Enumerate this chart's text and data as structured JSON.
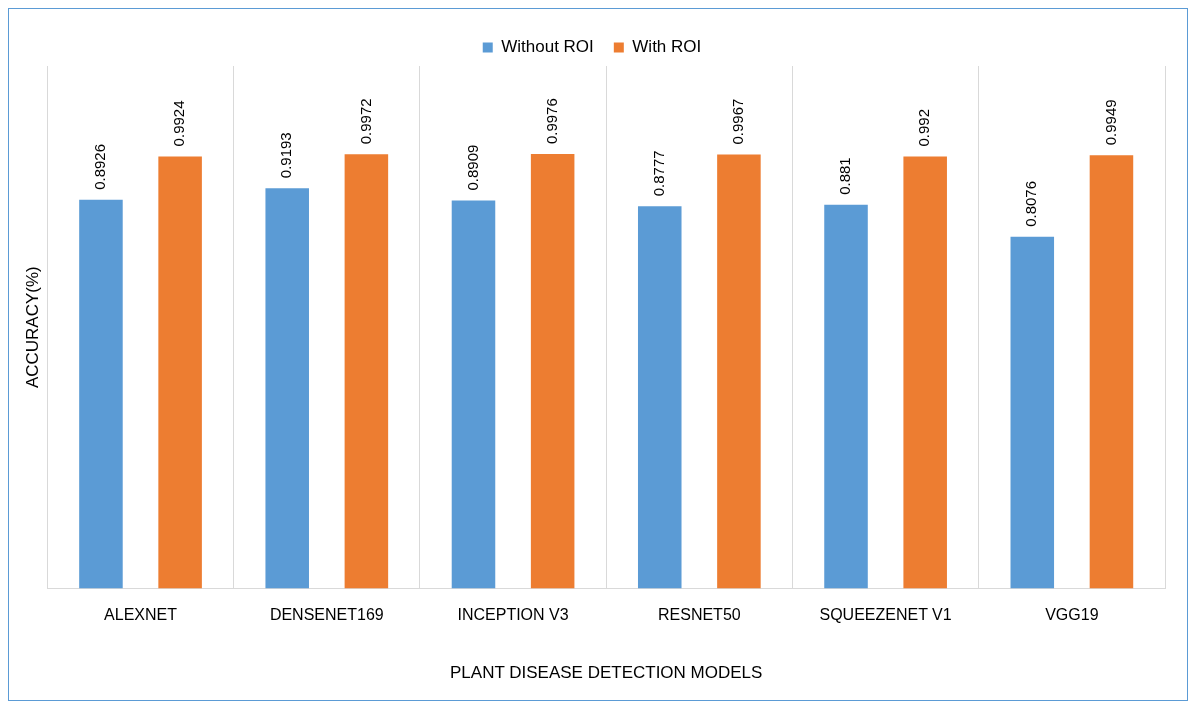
{
  "chart_data": {
    "type": "bar",
    "xlabel": "PLANT DISEASE DETECTION MODELS",
    "ylabel": "ACCURACY(%)",
    "categories": [
      "ALEXNET",
      "DENSENET169",
      "INCEPTION V3",
      "RESNET50",
      "SQUEEZENET V1",
      "VGG19"
    ],
    "series": [
      {
        "name": "Without ROI",
        "color": "#5b9bd5",
        "values": [
          0.8926,
          0.9193,
          0.8909,
          0.8777,
          0.881,
          0.8076
        ]
      },
      {
        "name": "With ROI",
        "color": "#ed7d31",
        "values": [
          0.9924,
          0.9972,
          0.9976,
          0.9967,
          0.992,
          0.9949
        ]
      }
    ],
    "data_labels": true,
    "grid": "x",
    "legend": "top"
  }
}
